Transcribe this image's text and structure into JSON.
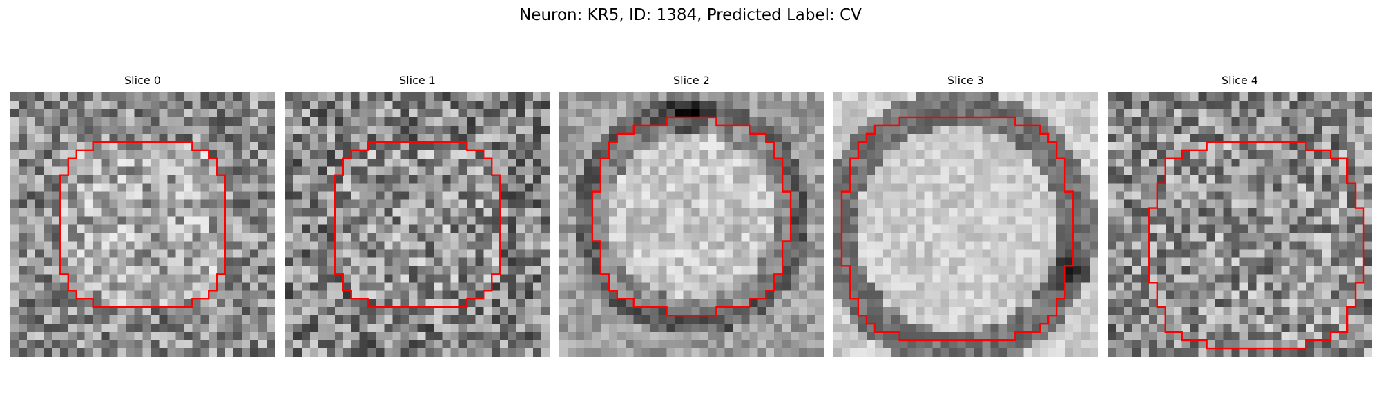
{
  "figure": {
    "title": "Neuron: KR5, ID: 1384, Predicted Label: CV"
  },
  "slices": [
    {
      "title": "Slice 0"
    },
    {
      "title": "Slice 1"
    },
    {
      "title": "Slice 2"
    },
    {
      "title": "Slice 3"
    },
    {
      "title": "Slice 4"
    }
  ],
  "colors": {
    "contour": "#ff0000",
    "colormap": "gray"
  }
}
